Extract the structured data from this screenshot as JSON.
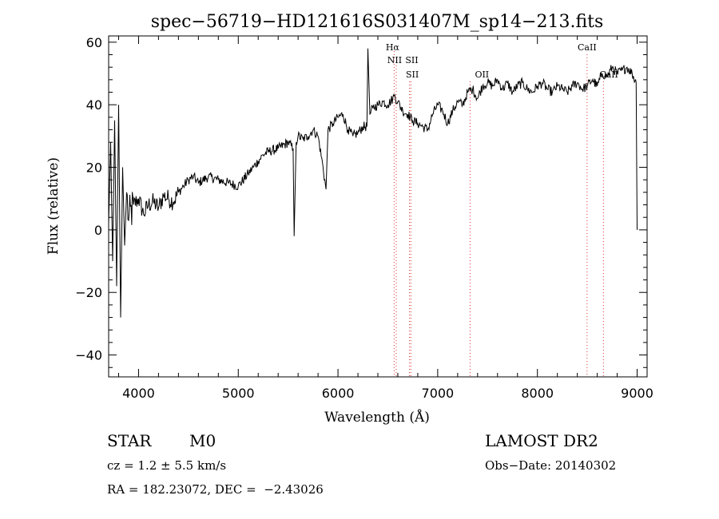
{
  "chart_data": {
    "type": "line",
    "title": "spec−56719−HD121616S031407M_sp14−213.fits",
    "xlabel": "Wavelength (Å)",
    "ylabel": "Flux (relative)",
    "xlim": [
      3700,
      9100
    ],
    "ylim": [
      -47,
      62
    ],
    "x_ticks": [
      4000,
      5000,
      6000,
      7000,
      8000,
      9000
    ],
    "x_tick_labels": [
      "4000",
      "5000",
      "6000",
      "7000",
      "8000",
      "9000"
    ],
    "y_ticks": [
      -40,
      -20,
      0,
      20,
      40,
      60
    ],
    "y_tick_labels": [
      "−40",
      "−20",
      "0",
      "20",
      "40",
      "60"
    ],
    "x_minor_step": 200,
    "y_minor_step": 4,
    "grid": false,
    "series": [
      {
        "x": [
          3700,
          3720,
          3740,
          3760,
          3780,
          3800,
          3820,
          3840,
          3860,
          3880,
          3900,
          3950,
          4000,
          4050,
          4100,
          4150,
          4200,
          4250,
          4300,
          4350,
          4400,
          4450,
          4500,
          4550,
          4600,
          4700,
          4800,
          4900,
          5000,
          5100,
          5150,
          5200,
          5250,
          5300,
          5400,
          5500,
          5550,
          5560,
          5580,
          5600,
          5650,
          5700,
          5750,
          5800,
          5850,
          5880,
          5900,
          5950,
          6000,
          6050,
          6100,
          6150,
          6200,
          6250,
          6290,
          6300,
          6320,
          6350,
          6400,
          6450,
          6500,
          6550,
          6563,
          6600,
          6650,
          6700,
          6750,
          6800,
          6850,
          6900,
          6950,
          7000,
          7050,
          7100,
          7150,
          7200,
          7250,
          7300,
          7350,
          7400,
          7450,
          7500,
          7550,
          7600,
          7650,
          7700,
          7750,
          7800,
          7850,
          7900,
          7950,
          8000,
          8050,
          8100,
          8150,
          8200,
          8250,
          8300,
          8350,
          8400,
          8450,
          8500,
          8550,
          8600,
          8650,
          8700,
          8750,
          8800,
          8850,
          8900,
          8950,
          8990,
          9000
        ],
        "y": [
          2,
          28,
          -10,
          35,
          -18,
          40,
          -28,
          20,
          -5,
          12,
          3,
          8,
          10,
          5,
          8,
          9,
          7,
          11,
          10,
          9,
          12,
          14,
          16,
          17,
          15,
          17,
          16,
          15,
          14,
          18,
          20,
          22,
          24,
          25,
          26,
          28,
          26,
          -2,
          28,
          30,
          29,
          30,
          32,
          30,
          20,
          13,
          32,
          34,
          36,
          37,
          32,
          30,
          31,
          33,
          33,
          58,
          37,
          39,
          40,
          41,
          40,
          42,
          43,
          41,
          38,
          37,
          35,
          34,
          33,
          32,
          37,
          40,
          38,
          34,
          38,
          41,
          40,
          44,
          45,
          42,
          46,
          47,
          46,
          48,
          45,
          47,
          44,
          46,
          47,
          45,
          44,
          46,
          47,
          45,
          44,
          46,
          45,
          44,
          46,
          47,
          45,
          46,
          48,
          46,
          50,
          49,
          52,
          50,
          51,
          52,
          50,
          47,
          0
        ]
      }
    ],
    "line_markers": [
      {
        "label": "Hα",
        "x": 6563
      },
      {
        "label": "NII",
        "x": 6584
      },
      {
        "label": "SII",
        "x": 6717
      },
      {
        "label": "SII",
        "x": 6731
      },
      {
        "label": "OII",
        "x": 7325
      },
      {
        "label": "CaII",
        "x": 8498
      },
      {
        "label": "CaII",
        "x": 8662
      }
    ],
    "marker_color": "#e03030",
    "line_color": "#000000"
  },
  "info": {
    "object_class": "STAR",
    "subclass": "M0",
    "survey": "LAMOST DR2",
    "cz": "cz = 1.2 ± 5.5 km/s",
    "obs_date": "Obs−Date: 20140302",
    "coords": "RA = 182.23072, DEC =  −2.43026"
  }
}
